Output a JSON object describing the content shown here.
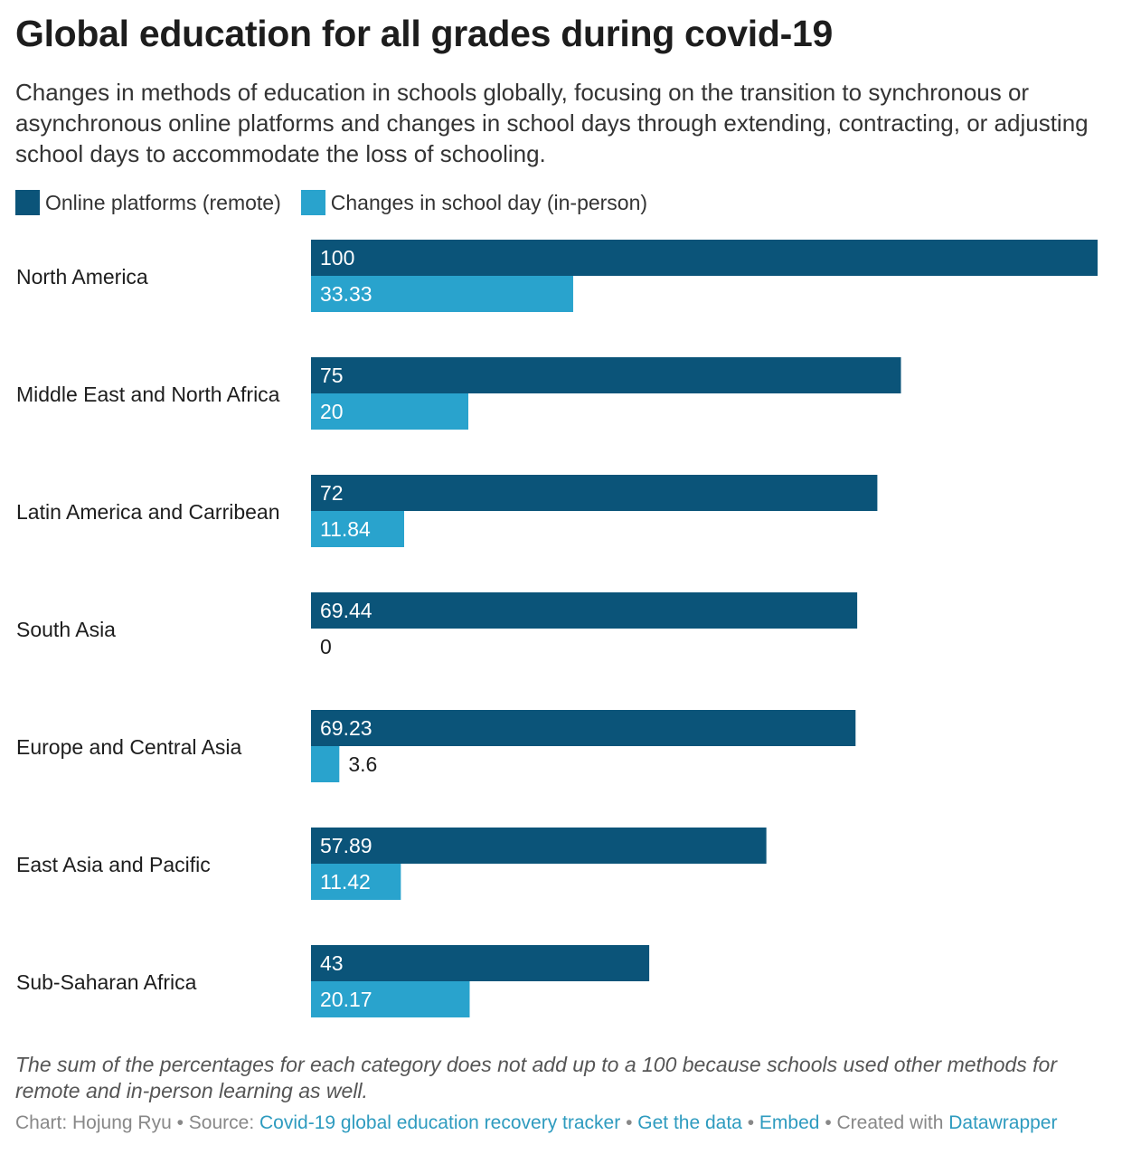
{
  "header": {
    "title": "Global education for all grades during covid-19",
    "subtitle": "Changes in methods of education in schools globally, focusing on the transition to synchronous or asynchronous online platforms and changes in school days through extending, contracting, or adjusting school days to accommodate the loss of schooling."
  },
  "colors": {
    "online": "#0b5479",
    "school_day": "#29a3cd"
  },
  "chart_data": {
    "type": "bar",
    "orientation": "horizontal",
    "categories": [
      "North America",
      "Middle East and North Africa",
      "Latin America and Carribean",
      "South Asia",
      "Europe and Central Asia",
      "East Asia and Pacific",
      "Sub-Saharan Africa"
    ],
    "series": [
      {
        "name": "Online platforms (remote)",
        "values": [
          100,
          75,
          72,
          69.44,
          69.23,
          57.89,
          43
        ]
      },
      {
        "name": "Changes in school day (in-person)",
        "values": [
          33.33,
          20,
          11.84,
          0,
          3.6,
          11.42,
          20.17
        ]
      }
    ],
    "xlim": [
      0,
      100
    ],
    "value_labels": true,
    "legend": "top-left"
  },
  "footer": {
    "note": "The sum of the percentages for each category does not add up to a 100 because schools used other methods for remote and in-person learning as well.",
    "chart_by": "Chart: Hojung Ryu",
    "source_prefix": "Source:",
    "source_link": "Covid-19 global education recovery tracker",
    "get_data": "Get the data",
    "embed": "Embed",
    "created_with": "Created with",
    "datawrapper": "Datawrapper",
    "separator": "•"
  }
}
